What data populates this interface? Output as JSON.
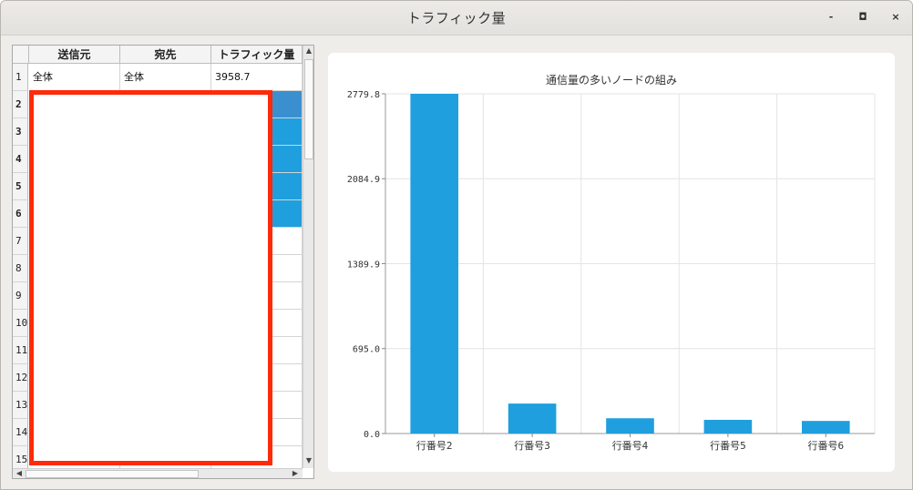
{
  "window": {
    "title": "トラフィック量",
    "minimize_glyph": "-",
    "maximize_glyph": "◘",
    "close_glyph": "×"
  },
  "table": {
    "columns": [
      "送信元",
      "宛先",
      "トラフィック量"
    ],
    "row_numbers": [
      "1",
      "2",
      "3",
      "4",
      "5",
      "6",
      "7",
      "8",
      "9",
      "10",
      "11",
      "12",
      "13",
      "14",
      "15"
    ],
    "first_row": [
      "全体",
      "全体",
      "3958.7"
    ],
    "selected_rows": [
      2,
      3,
      4,
      5,
      6
    ],
    "focused_row": 2
  },
  "chart_data": {
    "type": "bar",
    "title": "通信量の多いノードの組み",
    "categories": [
      "行番号2",
      "行番号3",
      "行番号4",
      "行番号5",
      "行番号6"
    ],
    "values": [
      2779.8,
      245,
      125,
      112,
      103
    ],
    "ylim": [
      0,
      2779.8
    ],
    "yticks": [
      "0.0",
      "695.0",
      "1389.9",
      "2084.9",
      "2779.8"
    ],
    "bar_color": "#1f9fde",
    "grid": true
  },
  "colors": {
    "selection": "#1f9fde",
    "redaction_border": "#ff2a0a"
  }
}
